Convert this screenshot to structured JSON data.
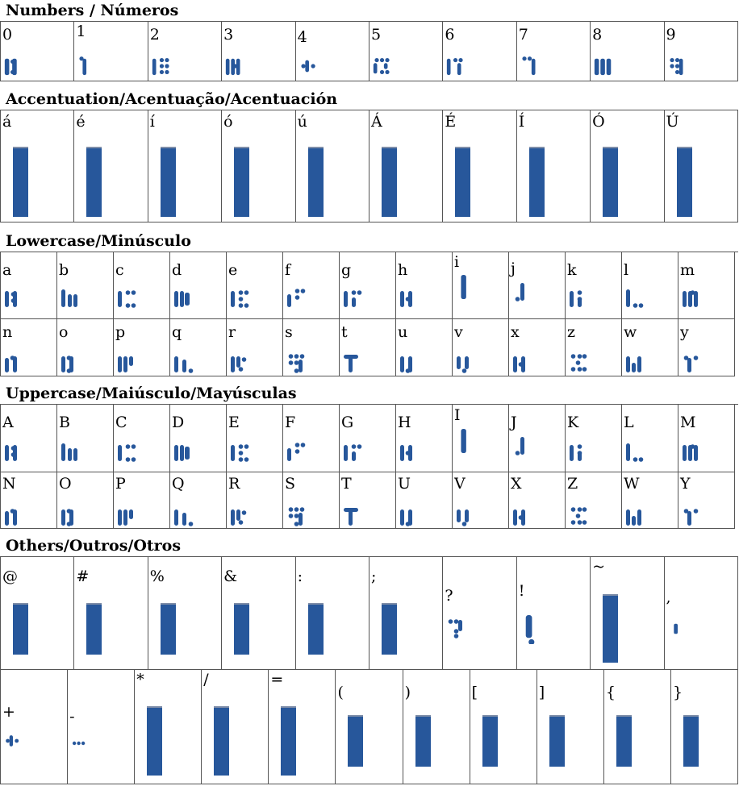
{
  "colors": {
    "glyph": "#27579b",
    "border": "#555555"
  },
  "sections": {
    "numbers": {
      "title": "Numbers / Números",
      "cells": [
        {
          "label": "0",
          "icon": "bar-code-glyph-0"
        },
        {
          "label": "1",
          "icon": "bar-code-glyph-1"
        },
        {
          "label": "2",
          "icon": "bar-code-glyph-2"
        },
        {
          "label": "3",
          "icon": "bar-code-glyph-3"
        },
        {
          "label": "4",
          "icon": "bar-code-glyph-4"
        },
        {
          "label": "5",
          "icon": "bar-code-glyph-5"
        },
        {
          "label": "6",
          "icon": "bar-code-glyph-6"
        },
        {
          "label": "7",
          "icon": "bar-code-glyph-7"
        },
        {
          "label": "8",
          "icon": "bar-code-glyph-8"
        },
        {
          "label": "9",
          "icon": "bar-code-glyph-9"
        }
      ]
    },
    "accents": {
      "title": "Accentuation/Acentuação/Acentuación",
      "cells": [
        {
          "label": "á",
          "icon": "placeholder-bar"
        },
        {
          "label": "é",
          "icon": "placeholder-bar"
        },
        {
          "label": "í",
          "icon": "placeholder-bar"
        },
        {
          "label": "ó",
          "icon": "placeholder-bar"
        },
        {
          "label": "ú",
          "icon": "placeholder-bar"
        },
        {
          "label": "Á",
          "icon": "placeholder-bar"
        },
        {
          "label": "É",
          "icon": "placeholder-bar"
        },
        {
          "label": "Í",
          "icon": "placeholder-bar"
        },
        {
          "label": "Ó",
          "icon": "placeholder-bar"
        },
        {
          "label": "Ú",
          "icon": "placeholder-bar"
        }
      ]
    },
    "lowercase": {
      "title": "Lowercase/Minúsculo",
      "row1": [
        "a",
        "b",
        "c",
        "d",
        "e",
        "f",
        "g",
        "h",
        "i",
        "j",
        "k",
        "l",
        "m"
      ],
      "row2": [
        "n",
        "o",
        "p",
        "q",
        "r",
        "s",
        "t",
        "u",
        "v",
        "x",
        "z",
        "w",
        "y"
      ]
    },
    "uppercase": {
      "title": "Uppercase/Maiúsculo/Mayúsculas",
      "row1": [
        "A",
        "B",
        "C",
        "D",
        "E",
        "F",
        "G",
        "H",
        "I",
        "J",
        "K",
        "L",
        "M"
      ],
      "row2": [
        "N",
        "O",
        "P",
        "Q",
        "R",
        "S",
        "T",
        "U",
        "V",
        "X",
        "Z",
        "W",
        "Y"
      ]
    },
    "others": {
      "title": "Others/Outros/Otros",
      "row1": [
        "@",
        "#",
        "%",
        "&",
        ":",
        ";",
        "?",
        "!",
        "~",
        ","
      ],
      "row2": [
        "+",
        "-",
        "*",
        "/",
        "=",
        "(",
        ")",
        "[",
        "]",
        "{",
        "}"
      ]
    }
  }
}
